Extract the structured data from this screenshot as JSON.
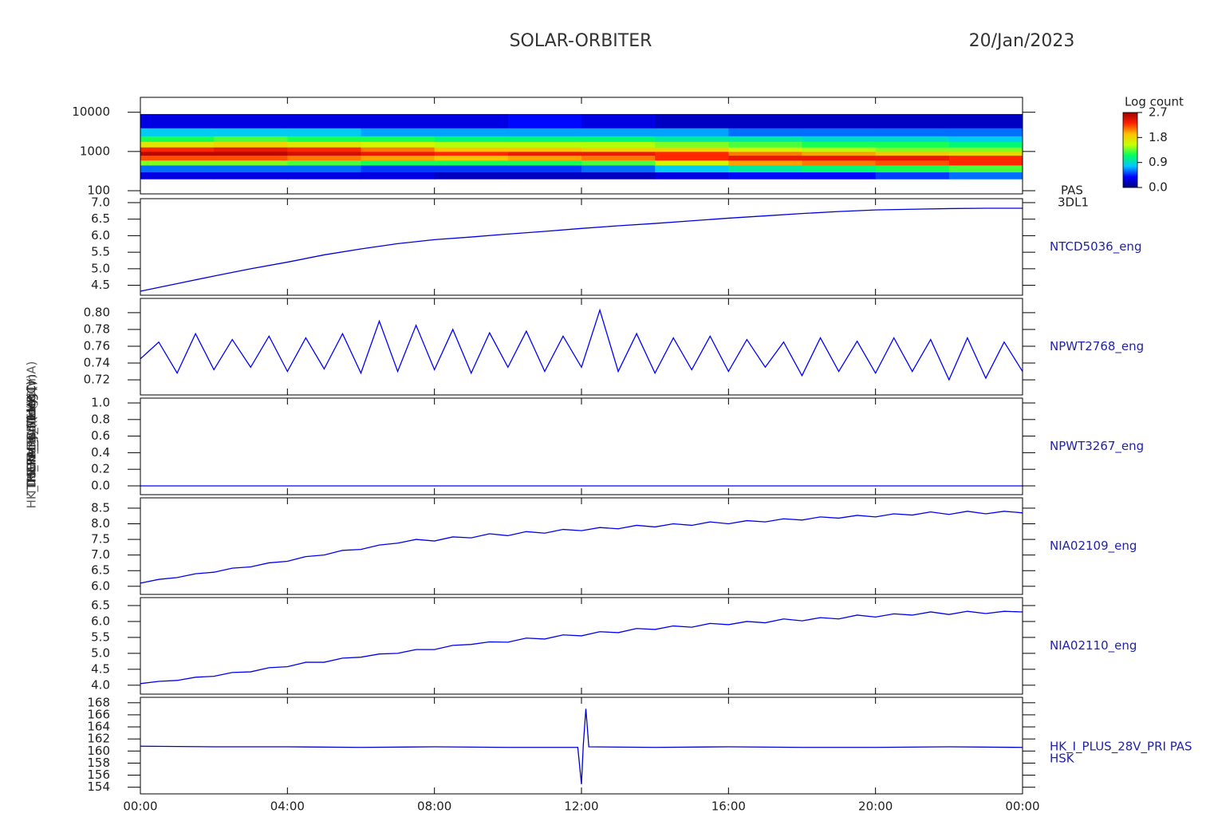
{
  "header": {
    "title": "SOLAR-ORBITER",
    "date": "20/Jan/2023"
  },
  "chart_data": [
    {
      "type": "heatmap",
      "name": "PAS",
      "instrument": "3DL1",
      "ylabel": "Energy (eV)",
      "log_y": true,
      "xlim": [
        0,
        24
      ],
      "ylim": [
        83,
        24000
      ],
      "yticks": [
        100,
        1000,
        10000
      ],
      "bins": [
        0,
        2,
        4,
        6,
        8,
        10,
        12,
        14,
        16,
        18,
        20,
        22,
        24
      ],
      "ybins": [
        200,
        300,
        450,
        600,
        800,
        1000,
        1300,
        1800,
        2500,
        4000,
        9000
      ],
      "values": [
        [
          0.3,
          0.3,
          0.3,
          0.3,
          0.2,
          0.2,
          0.2,
          0.3,
          0.4,
          0.4,
          0.5,
          0.6
        ],
        [
          0.6,
          0.6,
          0.6,
          0.5,
          0.5,
          0.5,
          0.6,
          0.8,
          1.0,
          1.1,
          1.2,
          1.3
        ],
        [
          1.4,
          1.4,
          1.3,
          1.2,
          1.2,
          1.2,
          1.3,
          1.6,
          2.0,
          2.1,
          2.2,
          2.3
        ],
        [
          2.2,
          2.2,
          2.1,
          2.0,
          1.9,
          2.0,
          2.1,
          2.3,
          2.4,
          2.4,
          2.4,
          2.3
        ],
        [
          2.6,
          2.6,
          2.5,
          2.4,
          2.3,
          2.4,
          2.4,
          2.3,
          2.1,
          2.0,
          1.9,
          1.8
        ],
        [
          2.3,
          2.4,
          2.3,
          2.1,
          1.9,
          1.9,
          1.8,
          1.8,
          1.6,
          1.5,
          1.4,
          1.4
        ],
        [
          1.7,
          1.8,
          1.7,
          1.6,
          1.5,
          1.5,
          1.5,
          1.4,
          1.3,
          1.2,
          1.2,
          1.1
        ],
        [
          1.2,
          1.3,
          1.2,
          1.2,
          1.1,
          1.1,
          1.1,
          1.0,
          1.0,
          0.9,
          0.9,
          0.8
        ],
        [
          0.8,
          0.8,
          0.8,
          0.7,
          0.7,
          0.7,
          0.7,
          0.7,
          0.6,
          0.6,
          0.6,
          0.6
        ],
        [
          0.3,
          0.3,
          0.3,
          0.3,
          0.3,
          0.4,
          0.3,
          0.2,
          0.2,
          0.2,
          0.2,
          0.2
        ]
      ],
      "colorbar_label": "Log count",
      "clim": [
        0,
        2.7
      ],
      "cticks": [
        {
          "value": 0,
          "label": "0.0"
        },
        {
          "value": 0.9,
          "label": "0.9"
        },
        {
          "value": 1.8,
          "label": "1.8"
        },
        {
          "value": 2.7,
          "label": "2.7"
        }
      ],
      "colormap": [
        "#000080",
        "#0000ff",
        "#00c8ff",
        "#00ff60",
        "#c8ff00",
        "#ffc000",
        "#ff2000",
        "#a00000"
      ]
    },
    {
      "type": "line",
      "ylabel": "Rx Temp (DegC)",
      "xlim": [
        0,
        24
      ],
      "ylim": [
        4.2,
        7.12
      ],
      "yticks": [
        {
          "value": 4.5,
          "label": "4.5"
        },
        {
          "value": 5,
          "label": "5.0"
        },
        {
          "value": 5.5,
          "label": "5.5"
        },
        {
          "value": 6,
          "label": "6.0"
        },
        {
          "value": 6.5,
          "label": "6.5"
        },
        {
          "value": 7,
          "label": "7.0"
        }
      ],
      "x": [
        0,
        1,
        2,
        3,
        4,
        5,
        6,
        7,
        8,
        9,
        10,
        11,
        12,
        13,
        14,
        15,
        16,
        17,
        18,
        19,
        20,
        21,
        22,
        23,
        24
      ],
      "series": [
        {
          "name": "NTCD5036_eng",
          "color": "#0000dd",
          "values": [
            4.32,
            4.55,
            4.78,
            5.0,
            5.2,
            5.42,
            5.6,
            5.76,
            5.88,
            5.96,
            6.05,
            6.13,
            6.22,
            6.3,
            6.37,
            6.45,
            6.53,
            6.6,
            6.67,
            6.73,
            6.78,
            6.8,
            6.82,
            6.83,
            6.83
          ]
        }
      ]
    },
    {
      "type": "line",
      "ylabel": "TDS_FPGA_TEMP (V)",
      "xlim": [
        0,
        24
      ],
      "ylim": [
        0.702,
        0.817
      ],
      "yticks": [
        {
          "value": 0.72,
          "label": "0.72"
        },
        {
          "value": 0.74,
          "label": "0.74"
        },
        {
          "value": 0.76,
          "label": "0.76"
        },
        {
          "value": 0.78,
          "label": "0.78"
        },
        {
          "value": 0.8,
          "label": "0.80"
        }
      ],
      "x": [
        0,
        0.5,
        1,
        1.5,
        2,
        2.5,
        3,
        3.5,
        4,
        4.5,
        5,
        5.5,
        6,
        6.5,
        7,
        7.5,
        8,
        8.5,
        9,
        9.5,
        10,
        10.5,
        11,
        11.5,
        12,
        12.5,
        13,
        13.5,
        14,
        14.5,
        15,
        15.5,
        16,
        16.5,
        17,
        17.5,
        18,
        18.5,
        19,
        19.5,
        20,
        20.5,
        21,
        21.5,
        22,
        22.5,
        23,
        23.5,
        24
      ],
      "series": [
        {
          "name": "NPWT2768_eng",
          "color": "#0000ff",
          "values": [
            0.745,
            0.765,
            0.728,
            0.775,
            0.732,
            0.768,
            0.735,
            0.772,
            0.73,
            0.77,
            0.733,
            0.775,
            0.728,
            0.79,
            0.73,
            0.785,
            0.732,
            0.78,
            0.728,
            0.776,
            0.735,
            0.778,
            0.73,
            0.772,
            0.735,
            0.803,
            0.73,
            0.775,
            0.728,
            0.77,
            0.732,
            0.772,
            0.73,
            0.768,
            0.735,
            0.765,
            0.725,
            0.77,
            0.73,
            0.766,
            0.728,
            0.77,
            0.73,
            0.768,
            0.72,
            0.77,
            0.722,
            0.765,
            0.73
          ]
        }
      ]
    },
    {
      "type": "line",
      "ylabel": "SWA_EAS1 (V)",
      "xlim": [
        0,
        24
      ],
      "ylim": [
        -0.106,
        1.058
      ],
      "yticks": [
        {
          "value": 0,
          "label": "0.0"
        },
        {
          "value": 0.2,
          "label": "0.2"
        },
        {
          "value": 0.4,
          "label": "0.4"
        },
        {
          "value": 0.6,
          "label": "0.6"
        },
        {
          "value": 0.8,
          "label": "0.8"
        },
        {
          "value": 1,
          "label": "1.0"
        }
      ],
      "x": [
        0,
        24
      ],
      "series": [
        {
          "name": "NPWT3267_eng",
          "color": "#0000ff",
          "values": [
            0,
            0
          ]
        }
      ]
    },
    {
      "type": "line",
      "ylabel": "THERM_C4 (degC)",
      "xlim": [
        0,
        24
      ],
      "ylim": [
        5.74,
        8.83
      ],
      "yticks": [
        {
          "value": 6,
          "label": "6.0"
        },
        {
          "value": 6.5,
          "label": "6.5"
        },
        {
          "value": 7,
          "label": "7.0"
        },
        {
          "value": 7.5,
          "label": "7.5"
        },
        {
          "value": 8,
          "label": "8.0"
        },
        {
          "value": 8.5,
          "label": "8.5"
        }
      ],
      "x": [
        0,
        0.5,
        1,
        1.5,
        2,
        2.5,
        3,
        3.5,
        4,
        4.5,
        5,
        5.5,
        6,
        6.5,
        7,
        7.5,
        8,
        8.5,
        9,
        9.5,
        10,
        10.5,
        11,
        11.5,
        12,
        12.5,
        13,
        13.5,
        14,
        14.5,
        15,
        15.5,
        16,
        16.5,
        17,
        17.5,
        18,
        18.5,
        19,
        19.5,
        20,
        20.5,
        21,
        21.5,
        22,
        22.5,
        23,
        23.5,
        24
      ],
      "series": [
        {
          "name": "NIA02109_eng",
          "color": "#0000ee",
          "values": [
            6.1,
            6.22,
            6.28,
            6.4,
            6.45,
            6.58,
            6.62,
            6.75,
            6.8,
            6.95,
            7.0,
            7.15,
            7.18,
            7.32,
            7.38,
            7.5,
            7.45,
            7.58,
            7.55,
            7.68,
            7.62,
            7.75,
            7.7,
            7.82,
            7.78,
            7.88,
            7.84,
            7.95,
            7.9,
            8.0,
            7.95,
            8.06,
            8.0,
            8.1,
            8.06,
            8.16,
            8.12,
            8.22,
            8.18,
            8.27,
            8.22,
            8.32,
            8.28,
            8.38,
            8.3,
            8.4,
            8.32,
            8.4,
            8.35
          ]
        }
      ]
    },
    {
      "type": "line",
      "ylabel": "THERM_C5 (degC)",
      "xlim": [
        0,
        24
      ],
      "ylim": [
        3.72,
        6.75
      ],
      "yticks": [
        {
          "value": 4,
          "label": "4.0"
        },
        {
          "value": 4.5,
          "label": "4.5"
        },
        {
          "value": 5,
          "label": "5.0"
        },
        {
          "value": 5.5,
          "label": "5.5"
        },
        {
          "value": 6,
          "label": "6.0"
        },
        {
          "value": 6.5,
          "label": "6.5"
        }
      ],
      "x": [
        0,
        0.5,
        1,
        1.5,
        2,
        2.5,
        3,
        3.5,
        4,
        4.5,
        5,
        5.5,
        6,
        6.5,
        7,
        7.5,
        8,
        8.5,
        9,
        9.5,
        10,
        10.5,
        11,
        11.5,
        12,
        12.5,
        13,
        13.5,
        14,
        14.5,
        15,
        15.5,
        16,
        16.5,
        17,
        17.5,
        18,
        18.5,
        19,
        19.5,
        20,
        20.5,
        21,
        21.5,
        22,
        22.5,
        23,
        23.5,
        24
      ],
      "series": [
        {
          "name": "NIA02110_eng",
          "color": "#0000ee",
          "values": [
            4.05,
            4.12,
            4.15,
            4.25,
            4.28,
            4.4,
            4.42,
            4.55,
            4.58,
            4.72,
            4.72,
            4.85,
            4.88,
            4.98,
            5.0,
            5.12,
            5.12,
            5.25,
            5.28,
            5.36,
            5.35,
            5.48,
            5.45,
            5.58,
            5.55,
            5.68,
            5.65,
            5.78,
            5.75,
            5.86,
            5.82,
            5.94,
            5.9,
            6.0,
            5.96,
            6.08,
            6.02,
            6.12,
            6.08,
            6.2,
            6.14,
            6.24,
            6.2,
            6.3,
            6.22,
            6.32,
            6.25,
            6.32,
            6.3
          ]
        }
      ]
    },
    {
      "type": "line",
      "ylabel": "HK_IMON_PRIMLHR (mA)",
      "instrument": "HSK",
      "xlim": [
        0,
        24
      ],
      "ylim": [
        152.9,
        168.9
      ],
      "yticks": [
        154,
        156,
        158,
        160,
        162,
        164,
        166,
        168
      ],
      "xticks": [
        {
          "value": 0,
          "label": "00:00"
        },
        {
          "value": 4,
          "label": "04:00"
        },
        {
          "value": 8,
          "label": "08:00"
        },
        {
          "value": 12,
          "label": "12:00"
        },
        {
          "value": 16,
          "label": "16:00"
        },
        {
          "value": 20,
          "label": "20:00"
        },
        {
          "value": 24,
          "label": "00:00"
        }
      ],
      "x": [
        0,
        2,
        4,
        6,
        8,
        10,
        11.9,
        12.0,
        12.05,
        12.12,
        12.2,
        14,
        16,
        18,
        20,
        22,
        24
      ],
      "series": [
        {
          "name": "HK_I_PLUS_28V_PRI PAS",
          "color": "#0000cc",
          "values": [
            160.8,
            160.7,
            160.7,
            160.6,
            160.7,
            160.6,
            160.6,
            154.5,
            161,
            167,
            160.7,
            160.6,
            160.7,
            160.6,
            160.6,
            160.7,
            160.6
          ]
        }
      ]
    }
  ]
}
